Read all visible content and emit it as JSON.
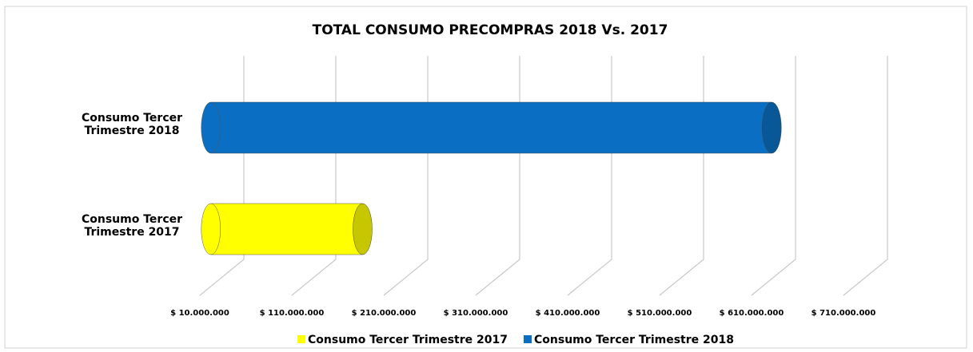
{
  "chart_data": {
    "type": "bar3d",
    "title": "TOTAL CONSUMO PRECOMPRAS 2018 Vs. 2017",
    "categories": [
      "Consumo Tercer Trimestre 2017",
      "Consumo Tercer Trimestre 2018"
    ],
    "values": [
      175000000,
      620000000
    ],
    "colors": [
      "#ffff00",
      "#0a6fc2"
    ],
    "xlim": [
      10000000,
      710000000
    ],
    "xticks": [
      {
        "value": 10000000,
        "label": "$ 10.000.000"
      },
      {
        "value": 110000000,
        "label": "$ 110.000.000"
      },
      {
        "value": 210000000,
        "label": "$ 210.000.000"
      },
      {
        "value": 310000000,
        "label": "$ 310.000.000"
      },
      {
        "value": 410000000,
        "label": "$ 410.000.000"
      },
      {
        "value": 510000000,
        "label": "$ 510.000.000"
      },
      {
        "value": 610000000,
        "label": "$ 610.000.000"
      },
      {
        "value": 710000000,
        "label": "$ 710.000.000"
      }
    ],
    "grid": true,
    "legend": "bottom"
  }
}
